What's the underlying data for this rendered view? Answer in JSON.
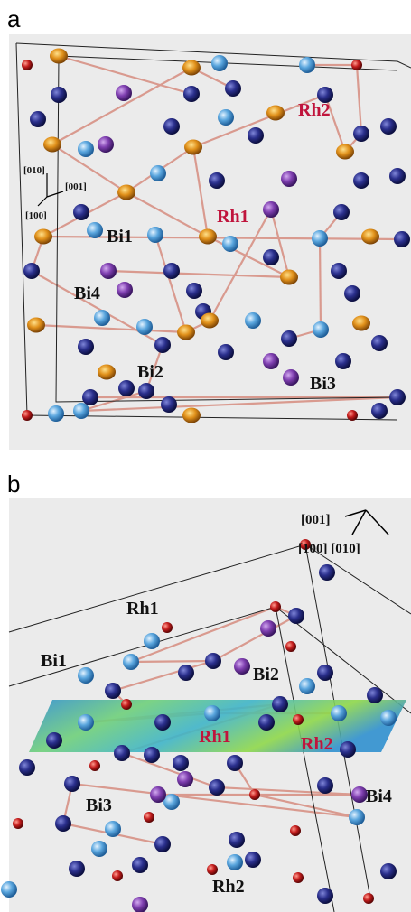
{
  "panels": [
    {
      "label": "a",
      "axes": [
        "[010]",
        "[001]",
        "[100]"
      ],
      "atom_labels": [
        "Rh2",
        "Rh1",
        "Bi1",
        "Bi4",
        "Bi2",
        "Bi3"
      ]
    },
    {
      "label": "b",
      "axes": [
        "[001]",
        "[100] [010]"
      ],
      "atom_labels": [
        "Rh1",
        "Bi1",
        "Bi2",
        "Rh1",
        "Rh2",
        "Bi3",
        "Bi4",
        "Rh2"
      ]
    }
  ]
}
